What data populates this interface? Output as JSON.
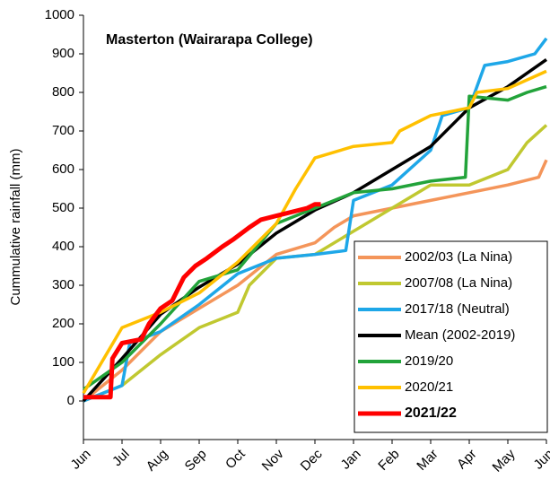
{
  "chart_data": {
    "type": "line",
    "title": "Masterton (Wairarapa College)",
    "y_label": "Cummulative rainfall (mm)",
    "categories": [
      "Jun",
      "Jul",
      "Aug",
      "Sep",
      "Oct",
      "Nov",
      "Dec",
      "Jan",
      "Feb",
      "Mar",
      "Apr",
      "May",
      "Jun"
    ],
    "xlim": [
      0,
      12
    ],
    "ylim": [
      -100,
      1000
    ],
    "yticks": [
      0,
      100,
      200,
      300,
      400,
      500,
      600,
      700,
      800,
      900,
      1000
    ],
    "legend": "bottom-right",
    "series": [
      {
        "name": "2002/03 (La Nina)",
        "color": "#f4955a",
        "x": [
          0,
          1,
          2,
          3,
          4,
          5,
          6,
          6.5,
          7,
          8,
          9,
          10,
          11,
          11.8,
          12
        ],
        "values": [
          0,
          80,
          180,
          240,
          300,
          380,
          410,
          450,
          480,
          500,
          520,
          540,
          560,
          580,
          625
        ]
      },
      {
        "name": "2007/08 (La Nina)",
        "color": "#c0c830",
        "x": [
          0,
          1,
          2,
          3,
          4,
          4.3,
          5,
          6,
          7,
          8,
          9,
          10,
          11,
          11.5,
          12
        ],
        "values": [
          0,
          40,
          120,
          190,
          230,
          300,
          370,
          380,
          440,
          500,
          560,
          560,
          600,
          670,
          715
        ]
      },
      {
        "name": "2017/18 (Neutral)",
        "color": "#1ea7e8",
        "x": [
          0,
          1,
          1.2,
          2,
          3,
          4,
          5,
          6,
          6.8,
          7,
          8,
          9,
          9.3,
          10,
          10.4,
          11,
          11.7,
          12
        ],
        "values": [
          0,
          40,
          150,
          180,
          250,
          330,
          370,
          380,
          390,
          520,
          560,
          650,
          740,
          760,
          870,
          880,
          900,
          940
        ]
      },
      {
        "name": "Mean (2002-2019)",
        "color": "#000000",
        "x": [
          0,
          1,
          2,
          3,
          4,
          5,
          6,
          7,
          8,
          9,
          10,
          11,
          12
        ],
        "values": [
          0,
          110,
          225,
          295,
          355,
          435,
          495,
          540,
          600,
          660,
          760,
          815,
          885
        ]
      },
      {
        "name": "2019/20",
        "color": "#22a33a",
        "x": [
          0,
          1,
          2,
          3,
          4,
          5,
          6,
          7,
          8,
          9,
          9.9,
          10,
          11,
          11.5,
          12
        ],
        "values": [
          30,
          100,
          200,
          310,
          340,
          460,
          500,
          540,
          550,
          570,
          580,
          790,
          780,
          800,
          815
        ]
      },
      {
        "name": "2020/21",
        "color": "#ffc000",
        "x": [
          0,
          1,
          2,
          3,
          4,
          5,
          5.5,
          6,
          7,
          8,
          8.2,
          9,
          10,
          10.2,
          11,
          12
        ],
        "values": [
          20,
          190,
          230,
          280,
          360,
          460,
          550,
          630,
          660,
          670,
          700,
          740,
          760,
          800,
          810,
          855
        ]
      },
      {
        "name": "2021/22",
        "color": "#ff0000",
        "bold": true,
        "x": [
          0,
          0.7,
          0.75,
          1,
          1.5,
          1.7,
          2,
          2.3,
          2.6,
          2.9,
          3.2,
          3.6,
          3.9,
          4.3,
          4.6,
          5,
          5.4,
          5.8,
          6,
          6.15
        ],
        "values": [
          10,
          10,
          110,
          150,
          160,
          200,
          240,
          260,
          320,
          350,
          370,
          400,
          420,
          450,
          470,
          480,
          490,
          500,
          510,
          510
        ]
      }
    ]
  }
}
